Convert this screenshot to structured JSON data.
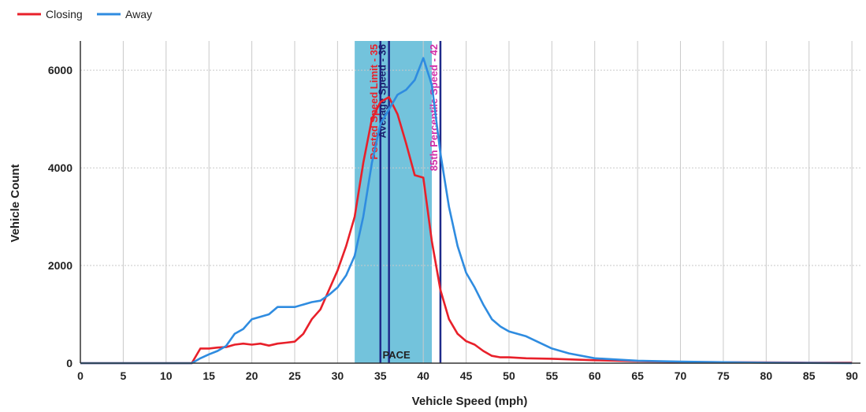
{
  "chart_data": {
    "type": "line",
    "xlabel": "Vehicle Speed (mph)",
    "ylabel": "Vehicle Count",
    "xlim": [
      0,
      91
    ],
    "ylim": [
      0,
      6600
    ],
    "x_ticks": [
      0,
      5,
      10,
      15,
      20,
      25,
      30,
      35,
      40,
      45,
      50,
      55,
      60,
      65,
      70,
      75,
      80,
      85,
      90
    ],
    "y_ticks": [
      0,
      2000,
      4000,
      6000
    ],
    "grid": true,
    "legend_position": "top-left",
    "pace_band": {
      "from": 32,
      "to": 41,
      "label": "PACE",
      "color": "#5bb8d6"
    },
    "reference_lines": [
      {
        "x": 35,
        "label": "Posted Speed Limit - 35",
        "color": "#1f2a8a",
        "label_color": "#e8202a"
      },
      {
        "x": 36,
        "label": "Average Speed - 36",
        "color": "#1f2a8a",
        "label_color": "#1a1f6e"
      },
      {
        "x": 42,
        "label": "85th Percentile Speed - 42",
        "color": "#1f2a8a",
        "label_color": "#d22ea8"
      }
    ],
    "series": [
      {
        "name": "Closing",
        "color": "#e8202a",
        "points": [
          [
            0,
            0
          ],
          [
            5,
            0
          ],
          [
            10,
            0
          ],
          [
            13,
            0
          ],
          [
            14,
            300
          ],
          [
            15,
            300
          ],
          [
            16,
            320
          ],
          [
            17,
            330
          ],
          [
            18,
            380
          ],
          [
            19,
            400
          ],
          [
            20,
            380
          ],
          [
            21,
            400
          ],
          [
            22,
            360
          ],
          [
            23,
            400
          ],
          [
            24,
            420
          ],
          [
            25,
            440
          ],
          [
            26,
            600
          ],
          [
            27,
            900
          ],
          [
            28,
            1100
          ],
          [
            29,
            1500
          ],
          [
            30,
            1900
          ],
          [
            31,
            2400
          ],
          [
            32,
            3000
          ],
          [
            33,
            4100
          ],
          [
            34,
            5000
          ],
          [
            35,
            5350
          ],
          [
            36,
            5450
          ],
          [
            37,
            5100
          ],
          [
            38,
            4500
          ],
          [
            39,
            3850
          ],
          [
            40,
            3800
          ],
          [
            41,
            2500
          ],
          [
            42,
            1500
          ],
          [
            43,
            900
          ],
          [
            44,
            600
          ],
          [
            45,
            450
          ],
          [
            46,
            380
          ],
          [
            47,
            250
          ],
          [
            48,
            150
          ],
          [
            49,
            120
          ],
          [
            50,
            120
          ],
          [
            52,
            100
          ],
          [
            55,
            90
          ],
          [
            60,
            60
          ],
          [
            65,
            40
          ],
          [
            70,
            25
          ],
          [
            75,
            20
          ],
          [
            80,
            15
          ],
          [
            85,
            10
          ],
          [
            90,
            10
          ]
        ]
      },
      {
        "name": "Away",
        "color": "#2f8ce0",
        "points": [
          [
            0,
            0
          ],
          [
            5,
            0
          ],
          [
            10,
            0
          ],
          [
            13,
            0
          ],
          [
            14,
            100
          ],
          [
            15,
            180
          ],
          [
            16,
            250
          ],
          [
            17,
            350
          ],
          [
            18,
            600
          ],
          [
            19,
            700
          ],
          [
            20,
            900
          ],
          [
            21,
            950
          ],
          [
            22,
            1000
          ],
          [
            23,
            1150
          ],
          [
            24,
            1150
          ],
          [
            25,
            1150
          ],
          [
            26,
            1200
          ],
          [
            27,
            1250
          ],
          [
            28,
            1280
          ],
          [
            29,
            1400
          ],
          [
            30,
            1550
          ],
          [
            31,
            1800
          ],
          [
            32,
            2200
          ],
          [
            33,
            3000
          ],
          [
            34,
            4100
          ],
          [
            35,
            4900
          ],
          [
            36,
            5200
          ],
          [
            37,
            5500
          ],
          [
            38,
            5600
          ],
          [
            39,
            5800
          ],
          [
            40,
            6250
          ],
          [
            41,
            5700
          ],
          [
            42,
            4300
          ],
          [
            43,
            3200
          ],
          [
            44,
            2400
          ],
          [
            45,
            1850
          ],
          [
            46,
            1550
          ],
          [
            47,
            1200
          ],
          [
            48,
            900
          ],
          [
            49,
            750
          ],
          [
            50,
            650
          ],
          [
            52,
            550
          ],
          [
            55,
            300
          ],
          [
            57,
            200
          ],
          [
            60,
            100
          ],
          [
            65,
            50
          ],
          [
            70,
            30
          ],
          [
            75,
            20
          ],
          [
            80,
            10
          ],
          [
            85,
            5
          ],
          [
            90,
            0
          ]
        ]
      }
    ]
  }
}
